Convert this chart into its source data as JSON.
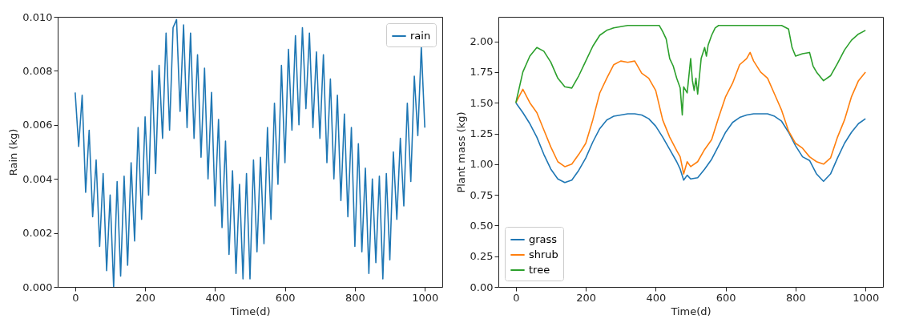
{
  "chart_data": [
    {
      "type": "line",
      "xlabel": "Time(d)",
      "ylabel": "Rain (kg)",
      "legend": "top right",
      "grid": false,
      "xlim": [
        -50,
        1050
      ],
      "xticks": [
        0,
        200,
        400,
        600,
        800,
        1000
      ],
      "ylim": [
        0,
        0.01
      ],
      "yticks": [
        {
          "value": 0,
          "label": "0.000"
        },
        {
          "value": 0.002,
          "label": "0.002"
        },
        {
          "value": 0.004,
          "label": "0.004"
        },
        {
          "value": 0.006,
          "label": "0.006"
        },
        {
          "value": 0.008,
          "label": "0.008"
        },
        {
          "value": 0.01,
          "label": "0.010"
        }
      ],
      "series": [
        {
          "name": "rain",
          "color": "#1f77b4",
          "x": [
            0,
            10,
            20,
            30,
            40,
            50,
            60,
            70,
            80,
            90,
            100,
            110,
            120,
            130,
            140,
            150,
            160,
            170,
            180,
            190,
            200,
            210,
            220,
            230,
            240,
            250,
            260,
            270,
            280,
            290,
            300,
            310,
            320,
            330,
            340,
            350,
            360,
            370,
            380,
            390,
            400,
            410,
            420,
            430,
            440,
            450,
            460,
            470,
            480,
            490,
            500,
            510,
            520,
            530,
            540,
            550,
            560,
            570,
            580,
            590,
            600,
            610,
            620,
            630,
            640,
            650,
            660,
            670,
            680,
            690,
            700,
            710,
            720,
            730,
            740,
            750,
            760,
            770,
            780,
            790,
            800,
            810,
            820,
            830,
            840,
            850,
            860,
            870,
            880,
            890,
            900,
            910,
            920,
            930,
            940,
            950,
            960,
            970,
            980,
            990,
            1000
          ],
          "values": [
            0.0072,
            0.0052,
            0.0071,
            0.0035,
            0.0058,
            0.0026,
            0.0047,
            0.0015,
            0.0042,
            0.0006,
            0.0034,
            0.0,
            0.0039,
            0.0004,
            0.0041,
            0.0008,
            0.0046,
            0.0017,
            0.0059,
            0.0025,
            0.0063,
            0.0034,
            0.008,
            0.0042,
            0.0082,
            0.0055,
            0.0094,
            0.0058,
            0.0096,
            0.0099,
            0.0065,
            0.0097,
            0.0059,
            0.0094,
            0.0055,
            0.0086,
            0.0048,
            0.0081,
            0.004,
            0.0072,
            0.003,
            0.0062,
            0.0022,
            0.0054,
            0.0012,
            0.0043,
            0.0005,
            0.0038,
            0.0003,
            0.0042,
            0.0003,
            0.0047,
            0.0013,
            0.0048,
            0.0016,
            0.0059,
            0.0025,
            0.0068,
            0.0038,
            0.0082,
            0.0046,
            0.0088,
            0.0058,
            0.0093,
            0.006,
            0.0096,
            0.0066,
            0.0094,
            0.0059,
            0.0087,
            0.0055,
            0.0086,
            0.0046,
            0.0077,
            0.004,
            0.0071,
            0.0032,
            0.0064,
            0.0026,
            0.0059,
            0.0015,
            0.0053,
            0.0013,
            0.0044,
            0.0005,
            0.004,
            0.0009,
            0.0041,
            0.0003,
            0.0042,
            0.001,
            0.005,
            0.0025,
            0.0055,
            0.003,
            0.0068,
            0.0039,
            0.0078,
            0.0056,
            0.0089,
            0.0059
          ]
        }
      ]
    },
    {
      "type": "line",
      "xlabel": "Time(d)",
      "ylabel": "Plant mass (kg)",
      "legend": "bottom left",
      "grid": false,
      "xlim": [
        -50,
        1050
      ],
      "xticks": [
        0,
        200,
        400,
        600,
        800,
        1000
      ],
      "ylim": [
        0,
        2.2
      ],
      "yticks": [
        {
          "value": 0,
          "label": "0.00"
        },
        {
          "value": 0.25,
          "label": "0.25"
        },
        {
          "value": 0.5,
          "label": "0.50"
        },
        {
          "value": 0.75,
          "label": "0.75"
        },
        {
          "value": 1,
          "label": "1.00"
        },
        {
          "value": 1.25,
          "label": "1.25"
        },
        {
          "value": 1.5,
          "label": "1.50"
        },
        {
          "value": 1.75,
          "label": "1.75"
        },
        {
          "value": 2,
          "label": "2.00"
        }
      ],
      "series": [
        {
          "name": "grass",
          "color": "#1f77b4",
          "x": [
            0,
            20,
            40,
            60,
            80,
            100,
            120,
            140,
            160,
            180,
            200,
            220,
            240,
            260,
            280,
            300,
            320,
            340,
            360,
            380,
            400,
            420,
            440,
            460,
            470,
            480,
            490,
            500,
            520,
            540,
            560,
            580,
            600,
            620,
            640,
            660,
            680,
            700,
            720,
            740,
            760,
            780,
            800,
            820,
            840,
            860,
            880,
            900,
            920,
            940,
            960,
            980,
            1000
          ],
          "values": [
            1.5,
            1.42,
            1.33,
            1.22,
            1.08,
            0.96,
            0.88,
            0.85,
            0.87,
            0.95,
            1.05,
            1.18,
            1.29,
            1.36,
            1.39,
            1.4,
            1.41,
            1.41,
            1.4,
            1.37,
            1.31,
            1.22,
            1.12,
            1.02,
            0.96,
            0.87,
            0.91,
            0.88,
            0.89,
            0.96,
            1.04,
            1.15,
            1.26,
            1.34,
            1.38,
            1.4,
            1.41,
            1.41,
            1.41,
            1.39,
            1.35,
            1.26,
            1.15,
            1.06,
            1.03,
            0.92,
            0.86,
            0.92,
            1.05,
            1.17,
            1.26,
            1.33,
            1.37
          ]
        },
        {
          "name": "shrub",
          "color": "#ff7f0e",
          "x": [
            0,
            20,
            40,
            60,
            80,
            100,
            120,
            140,
            160,
            180,
            200,
            220,
            240,
            260,
            280,
            300,
            320,
            340,
            360,
            380,
            400,
            420,
            440,
            460,
            470,
            480,
            490,
            500,
            520,
            540,
            560,
            580,
            600,
            620,
            640,
            660,
            670,
            680,
            700,
            720,
            740,
            760,
            780,
            800,
            820,
            840,
            860,
            880,
            900,
            920,
            940,
            960,
            980,
            1000
          ],
          "values": [
            1.5,
            1.61,
            1.5,
            1.42,
            1.28,
            1.14,
            1.02,
            0.98,
            1.0,
            1.08,
            1.17,
            1.36,
            1.58,
            1.7,
            1.81,
            1.84,
            1.83,
            1.84,
            1.74,
            1.7,
            1.6,
            1.36,
            1.22,
            1.11,
            1.06,
            0.92,
            1.02,
            0.98,
            1.02,
            1.12,
            1.2,
            1.38,
            1.55,
            1.66,
            1.81,
            1.86,
            1.91,
            1.84,
            1.75,
            1.7,
            1.57,
            1.44,
            1.27,
            1.17,
            1.13,
            1.06,
            1.02,
            1.0,
            1.05,
            1.22,
            1.36,
            1.55,
            1.68,
            1.75
          ]
        },
        {
          "name": "tree",
          "color": "#2ca02c",
          "x": [
            0,
            20,
            40,
            60,
            80,
            100,
            120,
            140,
            160,
            180,
            200,
            220,
            240,
            260,
            280,
            300,
            320,
            340,
            360,
            380,
            400,
            410,
            420,
            430,
            440,
            450,
            460,
            470,
            476,
            480,
            490,
            500,
            505,
            510,
            515,
            520,
            530,
            540,
            545,
            550,
            560,
            570,
            580,
            600,
            700,
            760,
            780,
            790,
            800,
            820,
            840,
            850,
            860,
            880,
            900,
            920,
            940,
            960,
            980,
            1000
          ],
          "values": [
            1.5,
            1.75,
            1.88,
            1.95,
            1.92,
            1.83,
            1.7,
            1.63,
            1.62,
            1.72,
            1.84,
            1.96,
            2.05,
            2.09,
            2.11,
            2.12,
            2.13,
            2.13,
            2.13,
            2.13,
            2.13,
            2.13,
            2.08,
            2.02,
            1.86,
            1.8,
            1.7,
            1.62,
            1.4,
            1.63,
            1.58,
            1.86,
            1.68,
            1.6,
            1.7,
            1.57,
            1.86,
            1.95,
            1.88,
            1.97,
            2.05,
            2.11,
            2.13,
            2.13,
            2.13,
            2.13,
            2.1,
            1.95,
            1.88,
            1.9,
            1.91,
            1.8,
            1.75,
            1.68,
            1.72,
            1.82,
            1.93,
            2.01,
            2.06,
            2.09
          ]
        }
      ]
    }
  ]
}
